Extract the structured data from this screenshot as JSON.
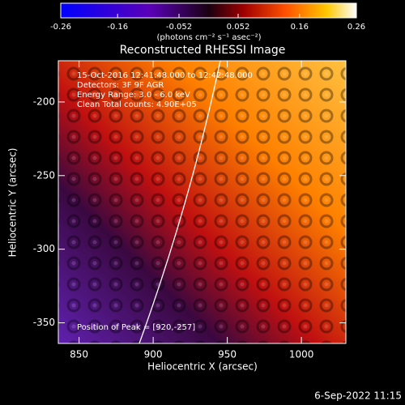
{
  "chart_data": {
    "type": "heatmap",
    "title": "Reconstructed RHESSI Image",
    "xlabel": "Heliocentric X (arcsec)",
    "ylabel": "Heliocentric Y (arcsec)",
    "xlim": [
      836,
      1030
    ],
    "ylim": [
      -364,
      -172
    ],
    "xticks": [
      850,
      900,
      950,
      1000
    ],
    "yticks": [
      -200,
      -250,
      -300,
      -350
    ],
    "colorbar": {
      "label": "(photons cm⁻² s⁻¹ asec⁻²)",
      "lim": [
        -0.26,
        0.26
      ],
      "ticks": [
        -0.26,
        -0.16,
        -0.052,
        0.052,
        0.16,
        0.26
      ]
    },
    "annotations": [
      "15-Oct-2016 12:41:48.000 to 12:42:48.000",
      "Detectors: 3F 9F  AGR",
      "Energy Range: 3.0 - 6.0 keV",
      "Clean     Total counts: 4.90E+05"
    ],
    "peak_label": "Position of Peak = [920,-257]",
    "footer": "6-Sep-2022 11:15"
  }
}
